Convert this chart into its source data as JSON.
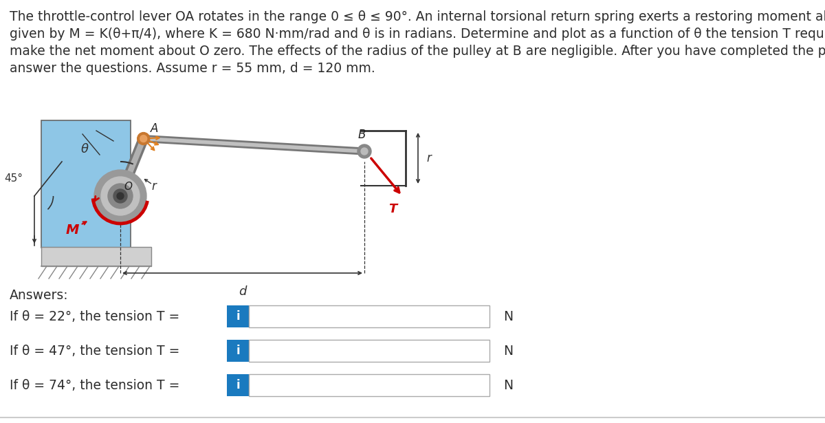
{
  "line1": "The throttle-control lever OA rotates in the range 0 ≤ θ ≤ 90°. An internal torsional return spring exerts a restoring moment about O",
  "line2": "given by M = K(θ+π/4), where K = 680 N·mm/rad and θ is in radians. Determine and plot as a function of θ the tension T required to",
  "line3": "make the net moment about O zero. The effects of the radius of the pulley at B are negligible. After you have completed the plot,",
  "line4": "answer the questions. Assume r = 55 mm, d = 120 mm.",
  "answers_label": "Answers:",
  "q1_label": "If θ = 22°, the tension T =",
  "q2_label": "If θ = 47°, the tension T =",
  "q3_label": "If θ = 74°, the tension T =",
  "unit": "N",
  "bg_color": "#ffffff",
  "text_color": "#2d2d2d",
  "blue_btn_color": "#1a7abf",
  "input_border_color": "#aaaaaa"
}
